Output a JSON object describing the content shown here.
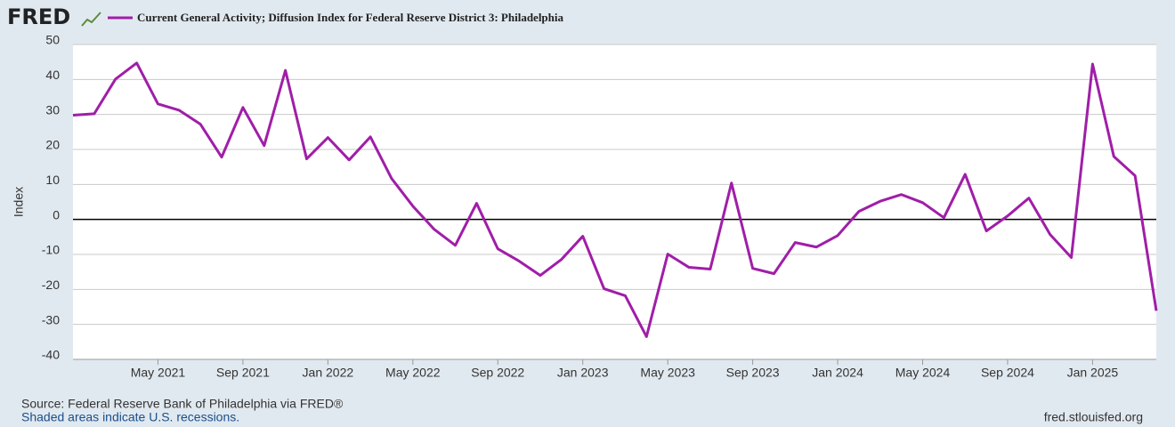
{
  "chart_data": {
    "type": "line",
    "logo": "FRED",
    "title": "Current General Activity; Diffusion Index for Federal Reserve District 3: Philadelphia",
    "y_label": "Index",
    "source": "Source: Federal Reserve Bank of Philadelphia via FRED®",
    "note": "Shaded areas indicate U.S. recessions.",
    "url": "fred.stlouisfed.org",
    "x": [
      "2021-01",
      "2021-02",
      "2021-03",
      "2021-04",
      "2021-05",
      "2021-06",
      "2021-07",
      "2021-08",
      "2021-09",
      "2021-10",
      "2021-11",
      "2021-12",
      "2022-01",
      "2022-02",
      "2022-03",
      "2022-04",
      "2022-05",
      "2022-06",
      "2022-07",
      "2022-08",
      "2022-09",
      "2022-10",
      "2022-11",
      "2022-12",
      "2023-01",
      "2023-02",
      "2023-03",
      "2023-04",
      "2023-05",
      "2023-06",
      "2023-07",
      "2023-08",
      "2023-09",
      "2023-10",
      "2023-11",
      "2023-12",
      "2024-01",
      "2024-02",
      "2024-03",
      "2024-04",
      "2024-05",
      "2024-06",
      "2024-07",
      "2024-08",
      "2024-09",
      "2024-10",
      "2024-11",
      "2024-12",
      "2025-01",
      "2025-02",
      "2025-03",
      "2025-04"
    ],
    "series": [
      {
        "name": "Current General Activity; Diffusion Index for Federal Reserve District 3: Philadelphia",
        "color": "#a01ea8",
        "values": [
          29.8,
          30.2,
          40.1,
          44.7,
          33.0,
          31.2,
          27.2,
          17.8,
          32.0,
          21.1,
          42.6,
          17.3,
          23.4,
          17.0,
          23.6,
          11.7,
          3.8,
          -2.8,
          -7.4,
          4.6,
          -8.4,
          -11.9,
          -16.0,
          -11.4,
          -4.8,
          -19.8,
          -21.8,
          -33.5,
          -9.9,
          -13.7,
          -14.2,
          10.4,
          -14.0,
          -15.5,
          -6.6,
          -7.9,
          -4.6,
          2.3,
          5.2,
          7.1,
          4.8,
          0.5,
          12.9,
          -3.3,
          1.0,
          6.1,
          -4.3,
          -10.9,
          44.4,
          18.0,
          12.5,
          -26.1
        ]
      }
    ],
    "ylim": [
      -40,
      50
    ],
    "yticks": [
      -40,
      -30,
      -20,
      -10,
      0,
      10,
      20,
      30,
      40,
      50
    ],
    "xticks": [
      {
        "value": "2021-05",
        "label": "May 2021"
      },
      {
        "value": "2021-09",
        "label": "Sep 2021"
      },
      {
        "value": "2022-01",
        "label": "Jan 2022"
      },
      {
        "value": "2022-05",
        "label": "May 2022"
      },
      {
        "value": "2022-09",
        "label": "Sep 2022"
      },
      {
        "value": "2023-01",
        "label": "Jan 2023"
      },
      {
        "value": "2023-05",
        "label": "May 2023"
      },
      {
        "value": "2023-09",
        "label": "Sep 2023"
      },
      {
        "value": "2024-01",
        "label": "Jan 2024"
      },
      {
        "value": "2024-05",
        "label": "May 2024"
      },
      {
        "value": "2024-09",
        "label": "Sep 2024"
      },
      {
        "value": "2025-01",
        "label": "Jan 2025"
      }
    ],
    "grid": true,
    "zero_line": true
  }
}
